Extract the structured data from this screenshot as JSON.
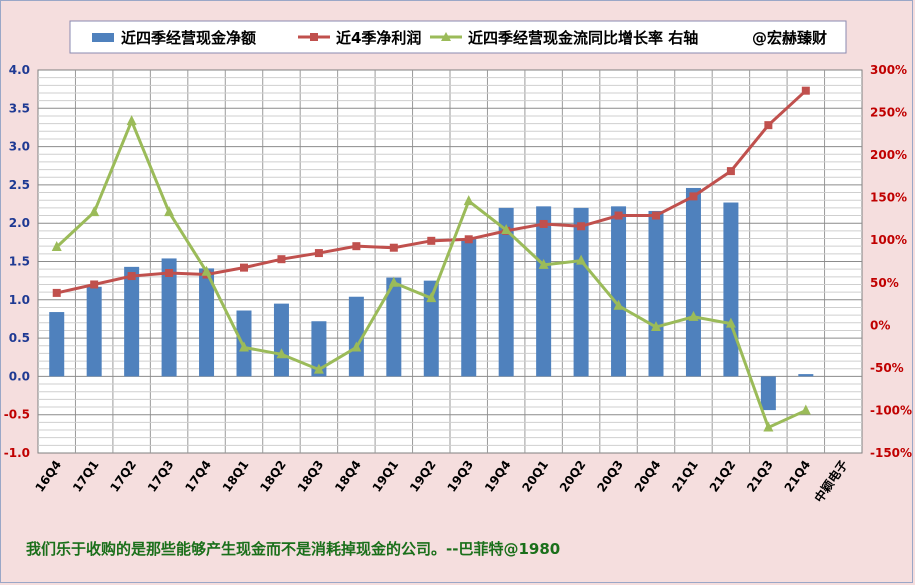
{
  "legend": {
    "bar_label": "近四季经营现金净额",
    "line_label": "近4季净利润",
    "growth_label": "近四季经营现金流同比增长率 右轴",
    "watermark": "@宏赫臻财"
  },
  "quote": "我们乐于收购的是那些能够产生现金而不是消耗掉现金的公司。--巴菲特@1980",
  "colors": {
    "bar": "#4f81bd",
    "line": "#c0504d",
    "growth": "#9bbb59",
    "left_axis_positive": "#1f3a93",
    "left_axis_negative": "#c00000",
    "right_axis_positive": "#c00000",
    "right_axis_negative": "#c00000"
  },
  "chart_data": {
    "type": "bar",
    "categories": [
      "16Q4",
      "17Q1",
      "17Q2",
      "17Q3",
      "17Q4",
      "18Q1",
      "18Q2",
      "18Q3",
      "18Q4",
      "19Q1",
      "19Q2",
      "19Q3",
      "19Q4",
      "20Q1",
      "20Q2",
      "20Q3",
      "20Q4",
      "21Q1",
      "21Q2",
      "21Q3",
      "21Q4",
      "中颖电子"
    ],
    "series": [
      {
        "name": "近四季经营现金净额",
        "type": "bar",
        "axis": "left",
        "values": [
          0.84,
          1.17,
          1.43,
          1.54,
          1.41,
          0.86,
          0.95,
          0.72,
          1.04,
          1.29,
          1.25,
          1.8,
          2.2,
          2.22,
          2.2,
          2.22,
          2.16,
          2.46,
          2.27,
          -0.44,
          0.03,
          null
        ]
      },
      {
        "name": "近4季净利润",
        "type": "line",
        "axis": "left",
        "values": [
          1.09,
          1.2,
          1.31,
          1.35,
          1.33,
          1.42,
          1.53,
          1.61,
          1.7,
          1.68,
          1.77,
          1.79,
          1.9,
          1.99,
          1.96,
          2.1,
          2.1,
          2.35,
          2.68,
          3.28,
          3.73,
          null
        ]
      },
      {
        "name": "近四季经营现金流同比增长率 右轴",
        "type": "line",
        "axis": "right",
        "values": [
          92,
          133,
          240,
          133,
          63,
          -26,
          -34,
          -52,
          -26,
          50,
          32,
          146,
          112,
          71,
          76,
          23,
          -2,
          10,
          2,
          -120,
          -100,
          null
        ]
      }
    ],
    "y_left": {
      "min": -1.0,
      "max": 4.0,
      "step": 0.5,
      "decimals": 1
    },
    "y_right": {
      "min": -150,
      "max": 300,
      "step": 50,
      "suffix": "%"
    },
    "grid": true,
    "legend_position": "top"
  }
}
